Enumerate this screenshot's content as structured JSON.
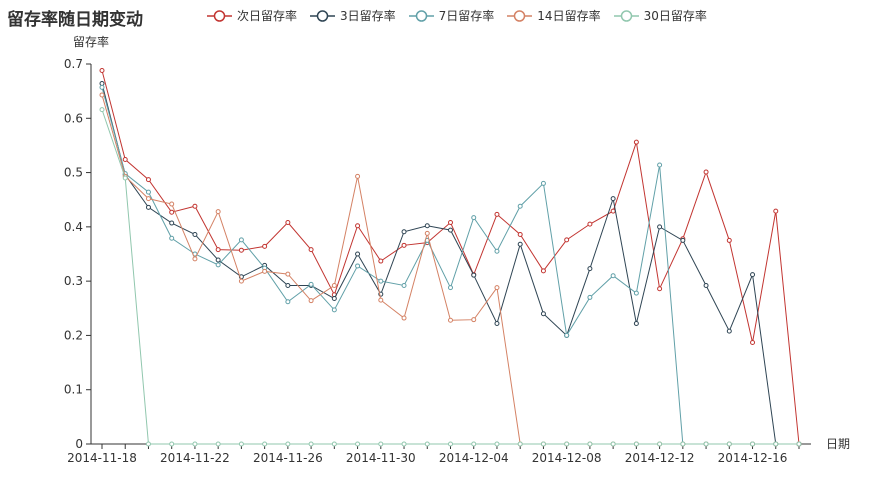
{
  "chart_data": {
    "type": "line",
    "title": "留存率随日期变动",
    "ylabel": "留存率",
    "xlabel": "日期",
    "ylim": [
      0,
      0.7
    ],
    "yticks": [
      "0",
      "0.1",
      "0.2",
      "0.3",
      "0.4",
      "0.5",
      "0.6",
      "0.7"
    ],
    "x": [
      "2014-11-18",
      "2014-11-19",
      "2014-11-20",
      "2014-11-21",
      "2014-11-22",
      "2014-11-23",
      "2014-11-24",
      "2014-11-25",
      "2014-11-26",
      "2014-11-27",
      "2014-11-28",
      "2014-11-29",
      "2014-11-30",
      "2014-12-01",
      "2014-12-02",
      "2014-12-03",
      "2014-12-04",
      "2014-12-05",
      "2014-12-06",
      "2014-12-07",
      "2014-12-08",
      "2014-12-09",
      "2014-12-10",
      "2014-12-11",
      "2014-12-12",
      "2014-12-13",
      "2014-12-14",
      "2014-12-15",
      "2014-12-16",
      "2014-12-17",
      "2014-12-18"
    ],
    "xtick_labels": [
      "2014-11-18",
      "2014-11-22",
      "2014-11-26",
      "2014-11-30",
      "2014-12-04",
      "2014-12-08",
      "2014-12-12",
      "2014-12-16"
    ],
    "grid": false,
    "legend_position": "top",
    "series": [
      {
        "name": "次日留存率",
        "color": "#c23531",
        "values": [
          0.688,
          0.524,
          0.487,
          0.427,
          0.438,
          0.358,
          0.357,
          0.364,
          0.408,
          0.358,
          0.275,
          0.402,
          0.337,
          0.366,
          0.371,
          0.408,
          0.312,
          0.423,
          0.386,
          0.319,
          0.376,
          0.405,
          0.429,
          0.556,
          0.286,
          0.378,
          0.501,
          0.375,
          0.187,
          0.429,
          0.0
        ]
      },
      {
        "name": "3日留存率",
        "color": "#2f4554",
        "values": [
          0.664,
          0.496,
          0.436,
          0.407,
          0.386,
          0.339,
          0.308,
          0.329,
          0.292,
          0.292,
          0.268,
          0.35,
          0.276,
          0.391,
          0.402,
          0.394,
          0.311,
          0.222,
          0.368,
          0.24,
          0.2,
          0.323,
          0.452,
          0.222,
          0.4,
          0.375,
          0.292,
          0.208,
          0.312,
          0.0,
          0.0
        ]
      },
      {
        "name": "7日留存率",
        "color": "#61a0a8",
        "values": [
          0.657,
          0.498,
          0.464,
          0.379,
          0.35,
          0.33,
          0.376,
          0.324,
          0.262,
          0.294,
          0.247,
          0.328,
          0.3,
          0.292,
          0.375,
          0.288,
          0.417,
          0.355,
          0.438,
          0.48,
          0.2,
          0.27,
          0.31,
          0.278,
          0.514,
          0.0,
          0.0,
          0.0,
          0.0,
          0.0,
          0.0
        ]
      },
      {
        "name": "14日留存率",
        "color": "#d48265",
        "values": [
          0.643,
          0.493,
          0.452,
          0.442,
          0.341,
          0.428,
          0.3,
          0.318,
          0.313,
          0.264,
          0.292,
          0.493,
          0.265,
          0.232,
          0.388,
          0.228,
          0.229,
          0.288,
          0.0,
          0.0,
          0.0,
          0.0,
          0.0,
          0.0,
          0.0,
          0.0,
          0.0,
          0.0,
          0.0,
          0.0,
          0.0
        ]
      },
      {
        "name": "30日留存率",
        "color": "#91c7ae",
        "values": [
          0.616,
          0.49,
          0.0,
          0.0,
          0.0,
          0.0,
          0.0,
          0.0,
          0.0,
          0.0,
          0.0,
          0.0,
          0.0,
          0.0,
          0.0,
          0.0,
          0.0,
          0.0,
          0.0,
          0.0,
          0.0,
          0.0,
          0.0,
          0.0,
          0.0,
          0.0,
          0.0,
          0.0,
          0.0,
          0.0,
          0.0
        ]
      }
    ]
  }
}
